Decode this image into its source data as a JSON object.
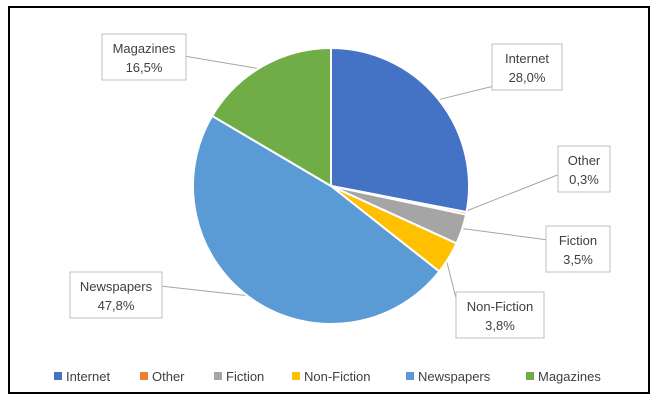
{
  "chart_data": {
    "type": "pie",
    "title": "",
    "categories": [
      "Internet",
      "Other",
      "Fiction",
      "Non-Fiction",
      "Newspapers",
      "Magazines"
    ],
    "values": [
      28.0,
      0.3,
      3.5,
      3.8,
      47.8,
      16.5
    ],
    "value_labels": [
      "28,0%",
      "0,3%",
      "3,5%",
      "3,8%",
      "47,8%",
      "16,5%"
    ],
    "colors": [
      "#4472C4",
      "#ED7D31",
      "#A5A5A5",
      "#FFC000",
      "#5B9BD5",
      "#70AD47"
    ],
    "start_angle": "12 o'clock",
    "direction": "clockwise",
    "data_labels": "outside with leader lines",
    "legend": "bottom"
  }
}
